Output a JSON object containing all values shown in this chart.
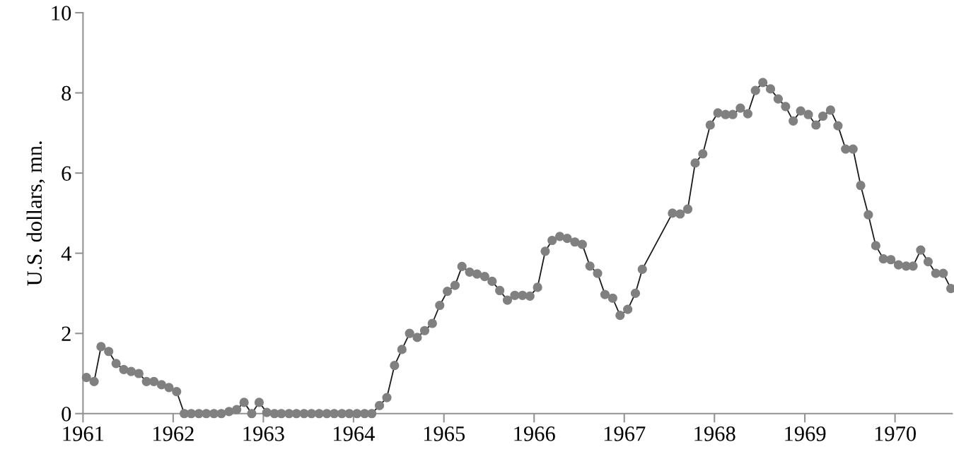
{
  "chart_data": {
    "type": "line",
    "ylabel": "U.S. dollars, mn.",
    "xlim": [
      "1961-01-01",
      "1970-08-20"
    ],
    "xticks": [
      {
        "value": "1961-01-01",
        "label": "1961"
      },
      {
        "value": "1962-01-01",
        "label": "1962"
      },
      {
        "value": "1963-01-01",
        "label": "1963"
      },
      {
        "value": "1964-01-01",
        "label": "1964"
      },
      {
        "value": "1965-01-01",
        "label": "1965"
      },
      {
        "value": "1966-01-01",
        "label": "1966"
      },
      {
        "value": "1967-01-01",
        "label": "1967"
      },
      {
        "value": "1968-01-01",
        "label": "1968"
      },
      {
        "value": "1969-01-01",
        "label": "1969"
      },
      {
        "value": "1970-01-01",
        "label": "1970"
      }
    ],
    "ylim": [
      0,
      10
    ],
    "yticks": [
      0,
      2,
      4,
      6,
      8,
      10
    ],
    "grid": false,
    "legend": false,
    "marker": "circle",
    "line_style": "solid",
    "series": [
      {
        "color": "#808080",
        "x": [
          "1961-01-15",
          "1961-02-15",
          "1961-03-15",
          "1961-04-15",
          "1961-05-15",
          "1961-06-15",
          "1961-07-15",
          "1961-08-15",
          "1961-09-15",
          "1961-10-15",
          "1961-11-15",
          "1961-12-15",
          "1962-01-15",
          "1962-02-15",
          "1962-03-15",
          "1962-04-15",
          "1962-05-15",
          "1962-06-15",
          "1962-07-15",
          "1962-08-15",
          "1962-09-15",
          "1962-10-15",
          "1962-11-15",
          "1962-12-15",
          "1963-01-15",
          "1963-02-15",
          "1963-03-15",
          "1963-04-15",
          "1963-05-15",
          "1963-06-15",
          "1963-07-15",
          "1963-08-15",
          "1963-09-15",
          "1963-10-15",
          "1963-11-15",
          "1963-12-15",
          "1964-01-15",
          "1964-02-15",
          "1964-03-15",
          "1964-04-15",
          "1964-05-15",
          "1964-06-15",
          "1964-07-15",
          "1964-08-15",
          "1964-09-15",
          "1964-10-15",
          "1964-11-15",
          "1964-12-15",
          "1965-01-15",
          "1965-02-15",
          "1965-03-15",
          "1965-04-15",
          "1965-05-15",
          "1965-06-15",
          "1965-07-15",
          "1965-08-15",
          "1965-09-15",
          "1965-10-15",
          "1965-11-15",
          "1965-12-15",
          "1966-01-15",
          "1966-02-15",
          "1966-03-15",
          "1966-04-15",
          "1966-05-15",
          "1966-06-15",
          "1966-07-15",
          "1966-08-15",
          "1966-09-15",
          "1966-10-15",
          "1966-11-15",
          "1966-12-15",
          "1967-01-15",
          "1967-02-15",
          "1967-03-15",
          "1967-07-15",
          "1967-08-15",
          "1967-09-15",
          "1967-10-15",
          "1967-11-15",
          "1967-12-15",
          "1968-01-15",
          "1968-02-15",
          "1968-03-15",
          "1968-04-15",
          "1968-05-15",
          "1968-06-15",
          "1968-07-15",
          "1968-08-15",
          "1968-09-15",
          "1968-10-15",
          "1968-11-15",
          "1968-12-15",
          "1969-01-15",
          "1969-02-15",
          "1969-03-15",
          "1969-04-15",
          "1969-05-15",
          "1969-06-15",
          "1969-07-15",
          "1969-08-15",
          "1969-09-15",
          "1969-10-15",
          "1969-11-15",
          "1969-12-15",
          "1970-01-15",
          "1970-02-15",
          "1970-03-15",
          "1970-04-15",
          "1970-05-15",
          "1970-06-15",
          "1970-07-15",
          "1970-08-15"
        ],
        "values": [
          0.9,
          0.8,
          1.67,
          1.55,
          1.25,
          1.1,
          1.05,
          1.0,
          0.8,
          0.8,
          0.72,
          0.65,
          0.55,
          0,
          0,
          0,
          0,
          0,
          0,
          0.05,
          0.1,
          0.28,
          0,
          0.28,
          0.03,
          0,
          0,
          0,
          0,
          0,
          0,
          0,
          0,
          0,
          0,
          0,
          0,
          0,
          0,
          0.2,
          0.4,
          1.2,
          1.6,
          2.0,
          1.9,
          2.07,
          2.25,
          2.7,
          3.05,
          3.2,
          3.67,
          3.53,
          3.48,
          3.42,
          3.3,
          3.07,
          2.83,
          2.95,
          2.95,
          2.93,
          3.15,
          4.05,
          4.32,
          4.42,
          4.37,
          4.28,
          4.22,
          3.68,
          3.5,
          2.97,
          2.88,
          2.45,
          2.6,
          3.0,
          3.6,
          5.0,
          4.98,
          5.1,
          6.25,
          6.48,
          7.2,
          7.5,
          7.46,
          7.46,
          7.62,
          7.48,
          8.06,
          8.26,
          8.1,
          7.85,
          7.66,
          7.3,
          7.55,
          7.46,
          7.2,
          7.42,
          7.57,
          7.18,
          6.6,
          6.6,
          5.69,
          4.96,
          4.19,
          3.86,
          3.84,
          3.71,
          3.68,
          3.68,
          4.08,
          3.79,
          3.5,
          3.5,
          3.12
        ]
      }
    ]
  }
}
